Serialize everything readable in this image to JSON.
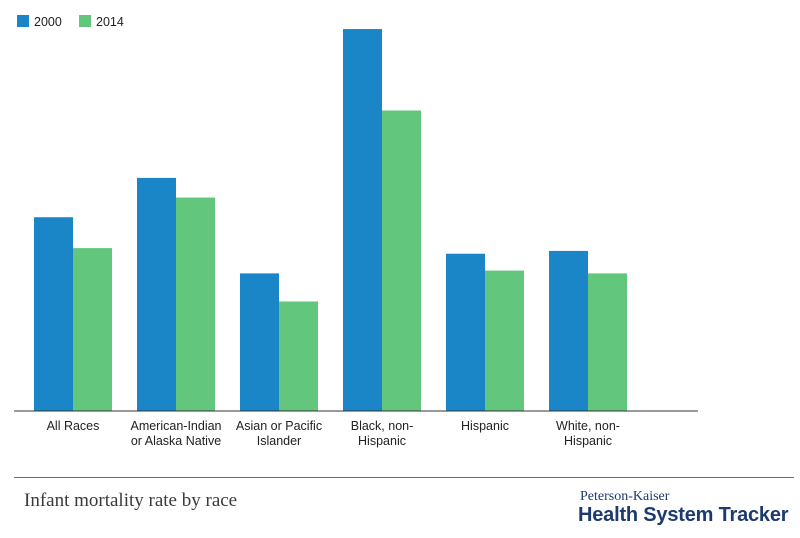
{
  "chart_data": {
    "type": "bar",
    "title": "Infant mortality rate by race",
    "xlabel": "",
    "ylabel": "",
    "ylim": [
      0,
      14.1
    ],
    "grid": false,
    "legend_position": "top-left",
    "categories": [
      [
        "All Races"
      ],
      [
        "American-Indian",
        "or Alaska Native"
      ],
      [
        "Asian or Pacific",
        "Islander"
      ],
      [
        "Black, non-",
        "Hispanic"
      ],
      [
        "Hispanic"
      ],
      [
        "White, non-",
        "Hispanic"
      ]
    ],
    "series": [
      {
        "name": "2000",
        "color": "#1a86c8",
        "values": [
          6.9,
          8.3,
          4.9,
          13.6,
          5.6,
          5.7
        ]
      },
      {
        "name": "2014",
        "color": "#62c77d",
        "values": [
          5.8,
          7.6,
          3.9,
          10.7,
          5.0,
          4.9
        ]
      }
    ]
  },
  "footer": {
    "title": "Infant mortality rate by race",
    "brand_line1": "Peterson-Kaiser",
    "brand_line2": "Health System Tracker"
  }
}
